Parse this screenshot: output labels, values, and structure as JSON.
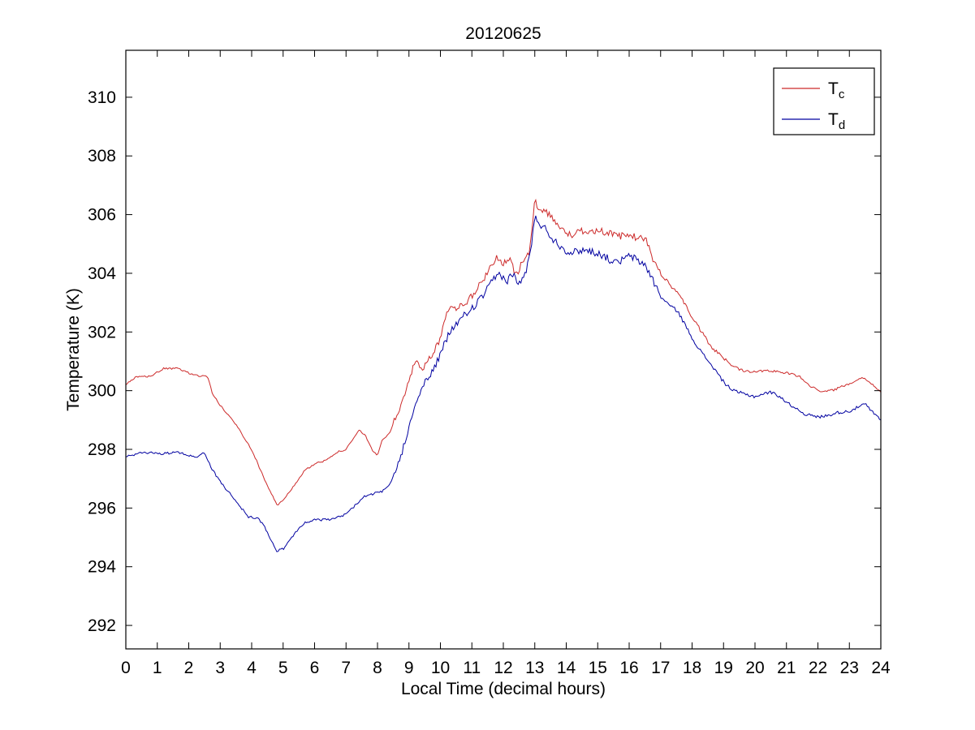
{
  "chart_data": {
    "type": "line",
    "title": "20120625",
    "xlabel": "Local Time (decimal hours)",
    "ylabel": "Temperature (K)",
    "xlim": [
      0,
      24
    ],
    "ylim": [
      291.2,
      311.6
    ],
    "xticks": [
      0,
      1,
      2,
      3,
      4,
      5,
      6,
      7,
      8,
      9,
      10,
      11,
      12,
      13,
      14,
      15,
      16,
      17,
      18,
      19,
      20,
      21,
      22,
      23,
      24
    ],
    "yticks": [
      292,
      294,
      296,
      298,
      300,
      302,
      304,
      306,
      308,
      310
    ],
    "grid": false,
    "background": "#ffffff",
    "legend": {
      "position": "top-right",
      "entries": [
        {
          "label": "T",
          "sub": "c",
          "color": "#cc2929"
        },
        {
          "label": "T",
          "sub": "d",
          "color": "#0000a0"
        }
      ]
    },
    "series": [
      {
        "name": "Tc",
        "color": "#cc2929",
        "noise_profile": [
          [
            0,
            0.03
          ],
          [
            8.5,
            0.12
          ],
          [
            17,
            0.06
          ],
          [
            20,
            0.04
          ]
        ],
        "points": [
          [
            0,
            300.2
          ],
          [
            0.3,
            300.45
          ],
          [
            0.8,
            300.5
          ],
          [
            1.2,
            300.75
          ],
          [
            1.7,
            300.75
          ],
          [
            2.0,
            300.6
          ],
          [
            2.3,
            300.5
          ],
          [
            2.6,
            300.5
          ],
          [
            2.75,
            299.9
          ],
          [
            3.0,
            299.5
          ],
          [
            3.5,
            298.85
          ],
          [
            4.0,
            298.0
          ],
          [
            4.4,
            297.0
          ],
          [
            4.8,
            296.1
          ],
          [
            5.0,
            296.25
          ],
          [
            5.3,
            296.7
          ],
          [
            5.7,
            297.3
          ],
          [
            6.0,
            297.5
          ],
          [
            6.3,
            297.6
          ],
          [
            6.7,
            297.9
          ],
          [
            7.0,
            298.0
          ],
          [
            7.2,
            298.3
          ],
          [
            7.4,
            298.65
          ],
          [
            7.6,
            298.5
          ],
          [
            7.85,
            297.95
          ],
          [
            8.0,
            297.8
          ],
          [
            8.15,
            298.3
          ],
          [
            8.4,
            298.6
          ],
          [
            8.7,
            299.4
          ],
          [
            9.0,
            300.3
          ],
          [
            9.2,
            301.0
          ],
          [
            9.45,
            300.8
          ],
          [
            9.8,
            301.3
          ],
          [
            10.0,
            301.8
          ],
          [
            10.2,
            302.75
          ],
          [
            10.5,
            302.85
          ],
          [
            10.8,
            303.0
          ],
          [
            11.0,
            303.2
          ],
          [
            11.3,
            303.7
          ],
          [
            11.6,
            304.2
          ],
          [
            11.8,
            304.6
          ],
          [
            12.0,
            304.3
          ],
          [
            12.2,
            304.5
          ],
          [
            12.4,
            303.9
          ],
          [
            12.6,
            304.4
          ],
          [
            12.8,
            304.6
          ],
          [
            12.9,
            305.3
          ],
          [
            13.0,
            306.5
          ],
          [
            13.15,
            306.2
          ],
          [
            13.35,
            306.1
          ],
          [
            13.55,
            305.95
          ],
          [
            13.75,
            305.6
          ],
          [
            13.95,
            305.4
          ],
          [
            14.2,
            305.3
          ],
          [
            14.5,
            305.45
          ],
          [
            15.0,
            305.45
          ],
          [
            15.3,
            305.4
          ],
          [
            15.6,
            305.25
          ],
          [
            16.0,
            305.3
          ],
          [
            16.3,
            305.2
          ],
          [
            16.55,
            305.15
          ],
          [
            16.7,
            304.6
          ],
          [
            17.0,
            304.0
          ],
          [
            17.3,
            303.6
          ],
          [
            17.55,
            303.35
          ],
          [
            17.8,
            302.9
          ],
          [
            18.0,
            302.5
          ],
          [
            18.3,
            302.0
          ],
          [
            18.6,
            301.5
          ],
          [
            19.0,
            301.1
          ],
          [
            19.3,
            300.85
          ],
          [
            19.6,
            300.7
          ],
          [
            20.0,
            300.65
          ],
          [
            20.4,
            300.7
          ],
          [
            21.0,
            300.6
          ],
          [
            21.4,
            300.5
          ],
          [
            21.7,
            300.2
          ],
          [
            22.0,
            300.0
          ],
          [
            22.4,
            300.0
          ],
          [
            22.7,
            300.1
          ],
          [
            23.0,
            300.25
          ],
          [
            23.4,
            300.45
          ],
          [
            23.6,
            300.35
          ],
          [
            24,
            299.95
          ]
        ]
      },
      {
        "name": "Td",
        "color": "#0000a0",
        "noise_profile": [
          [
            0,
            0.04
          ],
          [
            8.5,
            0.13
          ],
          [
            17,
            0.06
          ],
          [
            20,
            0.05
          ]
        ],
        "points": [
          [
            0,
            297.75
          ],
          [
            0.4,
            297.85
          ],
          [
            0.8,
            297.9
          ],
          [
            1.2,
            297.85
          ],
          [
            1.6,
            297.9
          ],
          [
            2.0,
            297.8
          ],
          [
            2.3,
            297.75
          ],
          [
            2.5,
            297.9
          ],
          [
            2.75,
            297.3
          ],
          [
            3.0,
            296.9
          ],
          [
            3.3,
            296.5
          ],
          [
            3.6,
            296.1
          ],
          [
            3.9,
            295.7
          ],
          [
            4.2,
            295.65
          ],
          [
            4.4,
            295.4
          ],
          [
            4.6,
            294.9
          ],
          [
            4.8,
            294.55
          ],
          [
            5.0,
            294.6
          ],
          [
            5.2,
            294.9
          ],
          [
            5.45,
            295.25
          ],
          [
            5.7,
            295.5
          ],
          [
            6.0,
            295.6
          ],
          [
            6.5,
            295.6
          ],
          [
            6.8,
            295.7
          ],
          [
            7.0,
            295.8
          ],
          [
            7.3,
            296.1
          ],
          [
            7.6,
            296.4
          ],
          [
            7.9,
            296.5
          ],
          [
            8.15,
            296.55
          ],
          [
            8.4,
            296.8
          ],
          [
            8.7,
            297.6
          ],
          [
            9.0,
            298.8
          ],
          [
            9.3,
            299.9
          ],
          [
            9.6,
            300.4
          ],
          [
            9.9,
            301.0
          ],
          [
            10.1,
            301.5
          ],
          [
            10.3,
            302.0
          ],
          [
            10.6,
            302.4
          ],
          [
            10.9,
            302.7
          ],
          [
            11.1,
            302.9
          ],
          [
            11.4,
            303.3
          ],
          [
            11.7,
            303.8
          ],
          [
            11.9,
            304.0
          ],
          [
            12.1,
            303.7
          ],
          [
            12.3,
            304.0
          ],
          [
            12.5,
            303.6
          ],
          [
            12.7,
            304.0
          ],
          [
            12.9,
            304.9
          ],
          [
            13.0,
            306.0
          ],
          [
            13.15,
            305.7
          ],
          [
            13.35,
            305.5
          ],
          [
            13.55,
            305.2
          ],
          [
            13.75,
            305.0
          ],
          [
            13.95,
            304.8
          ],
          [
            14.2,
            304.7
          ],
          [
            14.5,
            304.8
          ],
          [
            14.8,
            304.75
          ],
          [
            15.1,
            304.65
          ],
          [
            15.4,
            304.45
          ],
          [
            15.6,
            304.35
          ],
          [
            15.85,
            304.5
          ],
          [
            16.05,
            304.6
          ],
          [
            16.3,
            304.4
          ],
          [
            16.5,
            304.3
          ],
          [
            16.7,
            303.9
          ],
          [
            17.0,
            303.2
          ],
          [
            17.3,
            302.9
          ],
          [
            17.55,
            302.7
          ],
          [
            17.8,
            302.2
          ],
          [
            18.0,
            301.8
          ],
          [
            18.3,
            301.3
          ],
          [
            18.6,
            300.9
          ],
          [
            19.0,
            300.3
          ],
          [
            19.3,
            300.0
          ],
          [
            19.6,
            299.9
          ],
          [
            20.0,
            299.8
          ],
          [
            20.3,
            299.9
          ],
          [
            20.5,
            299.95
          ],
          [
            20.8,
            299.8
          ],
          [
            21.0,
            299.6
          ],
          [
            21.3,
            299.4
          ],
          [
            21.6,
            299.2
          ],
          [
            22.0,
            299.1
          ],
          [
            22.3,
            299.15
          ],
          [
            22.6,
            299.25
          ],
          [
            23.0,
            299.3
          ],
          [
            23.3,
            299.45
          ],
          [
            23.5,
            299.55
          ],
          [
            23.7,
            299.3
          ],
          [
            24,
            299.0
          ]
        ]
      }
    ]
  }
}
